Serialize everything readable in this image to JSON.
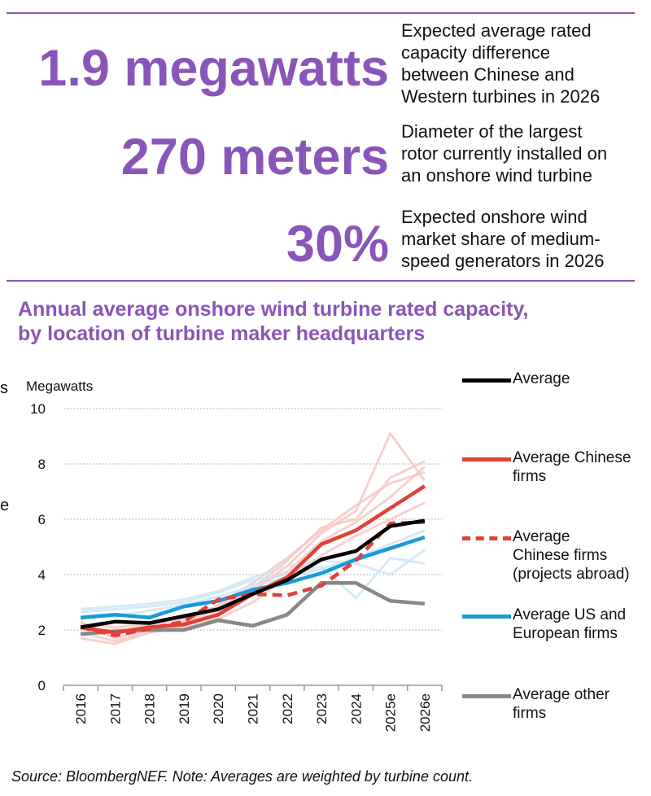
{
  "stats": [
    {
      "value": "1.9 megawatts",
      "lines": [
        "Expected average rated",
        "capacity difference",
        "between Chinese and",
        "Western turbines in 2026"
      ]
    },
    {
      "value": "270 meters",
      "lines": [
        "Diameter of the largest",
        "rotor currently installed on",
        "an onshore wind turbine"
      ]
    },
    {
      "value": "30%",
      "lines": [
        "Expected onshore wind",
        "market share of medium-",
        "speed generators in 2026"
      ]
    }
  ],
  "chart_data": {
    "type": "line",
    "title": "Annual average onshore wind turbine rated capacity, by location of turbine maker headquarters",
    "title_lines": [
      "Annual average onshore wind turbine rated capacity,",
      "by location of turbine maker headquarters"
    ],
    "ylabel": "Megawatts",
    "xlabel": "",
    "categories": [
      "2016",
      "2017",
      "2018",
      "2019",
      "2020",
      "2021",
      "2022",
      "2023",
      "2024",
      "2025e",
      "2026e"
    ],
    "ylim": [
      0,
      10
    ],
    "yticks": [
      0,
      2,
      4,
      6,
      8,
      10
    ],
    "grid": true,
    "legend": "right",
    "series": [
      {
        "name": "Average",
        "color": "#000000",
        "style": "solid",
        "values": [
          2.1,
          2.3,
          2.25,
          2.5,
          2.75,
          3.3,
          3.8,
          4.55,
          4.85,
          5.75,
          5.95
        ]
      },
      {
        "name": "Average Chinese firms",
        "color": "#e0413a",
        "style": "solid",
        "values": [
          2.1,
          1.9,
          2.1,
          2.2,
          2.55,
          3.3,
          3.9,
          5.1,
          5.6,
          6.4,
          7.2
        ]
      },
      {
        "name": "Average Chinese firms (projects abroad)",
        "color": "#e0413a",
        "style": "dashed",
        "values": [
          2.1,
          1.8,
          2.05,
          2.3,
          3.1,
          3.3,
          3.25,
          3.6,
          4.5,
          5.85,
          5.9
        ]
      },
      {
        "name": "Average US and European firms",
        "color": "#1a9ad9",
        "style": "solid",
        "values": [
          2.45,
          2.55,
          2.45,
          2.85,
          3.05,
          3.45,
          3.7,
          4.05,
          4.55,
          4.95,
          5.35
        ]
      },
      {
        "name": "Average other firms",
        "color": "#888888",
        "style": "solid",
        "values": [
          1.85,
          1.95,
          2.0,
          2.0,
          2.35,
          2.15,
          2.55,
          3.7,
          3.7,
          3.05,
          2.95
        ]
      }
    ],
    "background_series": [
      {
        "name": "Chinese firm",
        "color": "#f6c9c5",
        "values": [
          1.9,
          1.6,
          1.9,
          2.2,
          2.6,
          3.4,
          4.3,
          5.5,
          6.3,
          9.1,
          7.4
        ]
      },
      {
        "name": "Chinese firm",
        "color": "#f6c9c5",
        "values": [
          2.0,
          2.0,
          2.1,
          2.3,
          2.7,
          3.5,
          4.5,
          5.7,
          6.0,
          7.5,
          8.1
        ]
      },
      {
        "name": "Chinese firm",
        "color": "#f6c9c5",
        "values": [
          2.2,
          2.1,
          2.2,
          2.4,
          2.8,
          3.6,
          4.1,
          5.2,
          5.9,
          6.8,
          7.9
        ]
      },
      {
        "name": "Chinese firm",
        "color": "#f6c9c5",
        "values": [
          1.7,
          1.5,
          1.9,
          2.1,
          2.4,
          3.0,
          3.9,
          4.7,
          5.4,
          6.0,
          6.6
        ]
      },
      {
        "name": "Chinese firm",
        "color": "#f6c9c5",
        "values": [
          2.3,
          1.7,
          2.0,
          2.3,
          2.9,
          3.7,
          4.6,
          5.6,
          6.5,
          7.3,
          7.7
        ]
      },
      {
        "name": "US or European firm",
        "color": "#cde6f4",
        "values": [
          2.65,
          2.75,
          2.85,
          3.0,
          3.35,
          3.8,
          4.0,
          4.3,
          3.15,
          4.6,
          4.4
        ]
      },
      {
        "name": "US or European firm",
        "color": "#cde6f4",
        "values": [
          2.75,
          2.85,
          2.95,
          3.1,
          3.4,
          3.9,
          4.3,
          4.5,
          4.4,
          4.0,
          4.9
        ]
      },
      {
        "name": "US or European firm",
        "color": "#cde6f4",
        "values": [
          2.4,
          2.5,
          2.7,
          2.9,
          3.2,
          3.6,
          3.9,
          4.2,
          4.6,
          5.1,
          5.6
        ]
      }
    ]
  },
  "edge_glyphs": [
    "s",
    "e"
  ],
  "source": "Source: BloombergNEF. Note: Averages are weighted by turbine count."
}
